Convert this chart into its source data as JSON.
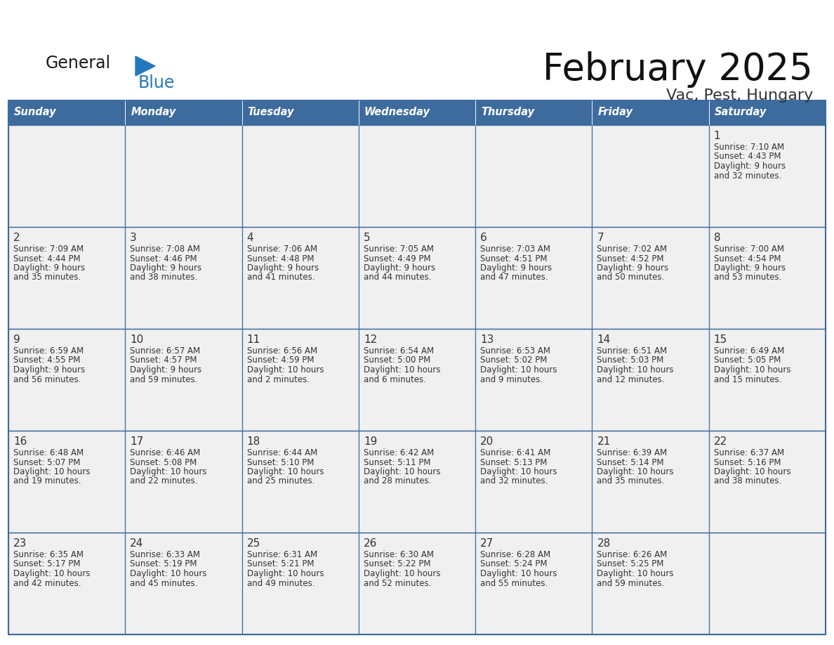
{
  "title": "February 2025",
  "subtitle": "Vac, Pest, Hungary",
  "days_of_week": [
    "Sunday",
    "Monday",
    "Tuesday",
    "Wednesday",
    "Thursday",
    "Friday",
    "Saturday"
  ],
  "header_bg": "#3d6b9e",
  "header_text_color": "#ffffff",
  "cell_bg": "#f0f0f0",
  "border_color": "#3d6b9e",
  "text_color": "#333333",
  "day_num_color": "#333333",
  "logo_general_color": "#1a1a1a",
  "logo_blue_color": "#2478c0",
  "calendar_data": [
    {
      "day": 1,
      "col": 6,
      "row": 0,
      "sunrise": "7:10 AM",
      "sunset": "4:43 PM",
      "daylight_h": "9 hours",
      "daylight_m": "and 32 minutes."
    },
    {
      "day": 2,
      "col": 0,
      "row": 1,
      "sunrise": "7:09 AM",
      "sunset": "4:44 PM",
      "daylight_h": "9 hours",
      "daylight_m": "and 35 minutes."
    },
    {
      "day": 3,
      "col": 1,
      "row": 1,
      "sunrise": "7:08 AM",
      "sunset": "4:46 PM",
      "daylight_h": "9 hours",
      "daylight_m": "and 38 minutes."
    },
    {
      "day": 4,
      "col": 2,
      "row": 1,
      "sunrise": "7:06 AM",
      "sunset": "4:48 PM",
      "daylight_h": "9 hours",
      "daylight_m": "and 41 minutes."
    },
    {
      "day": 5,
      "col": 3,
      "row": 1,
      "sunrise": "7:05 AM",
      "sunset": "4:49 PM",
      "daylight_h": "9 hours",
      "daylight_m": "and 44 minutes."
    },
    {
      "day": 6,
      "col": 4,
      "row": 1,
      "sunrise": "7:03 AM",
      "sunset": "4:51 PM",
      "daylight_h": "9 hours",
      "daylight_m": "and 47 minutes."
    },
    {
      "day": 7,
      "col": 5,
      "row": 1,
      "sunrise": "7:02 AM",
      "sunset": "4:52 PM",
      "daylight_h": "9 hours",
      "daylight_m": "and 50 minutes."
    },
    {
      "day": 8,
      "col": 6,
      "row": 1,
      "sunrise": "7:00 AM",
      "sunset": "4:54 PM",
      "daylight_h": "9 hours",
      "daylight_m": "and 53 minutes."
    },
    {
      "day": 9,
      "col": 0,
      "row": 2,
      "sunrise": "6:59 AM",
      "sunset": "4:55 PM",
      "daylight_h": "9 hours",
      "daylight_m": "and 56 minutes."
    },
    {
      "day": 10,
      "col": 1,
      "row": 2,
      "sunrise": "6:57 AM",
      "sunset": "4:57 PM",
      "daylight_h": "9 hours",
      "daylight_m": "and 59 minutes."
    },
    {
      "day": 11,
      "col": 2,
      "row": 2,
      "sunrise": "6:56 AM",
      "sunset": "4:59 PM",
      "daylight_h": "10 hours",
      "daylight_m": "and 2 minutes."
    },
    {
      "day": 12,
      "col": 3,
      "row": 2,
      "sunrise": "6:54 AM",
      "sunset": "5:00 PM",
      "daylight_h": "10 hours",
      "daylight_m": "and 6 minutes."
    },
    {
      "day": 13,
      "col": 4,
      "row": 2,
      "sunrise": "6:53 AM",
      "sunset": "5:02 PM",
      "daylight_h": "10 hours",
      "daylight_m": "and 9 minutes."
    },
    {
      "day": 14,
      "col": 5,
      "row": 2,
      "sunrise": "6:51 AM",
      "sunset": "5:03 PM",
      "daylight_h": "10 hours",
      "daylight_m": "and 12 minutes."
    },
    {
      "day": 15,
      "col": 6,
      "row": 2,
      "sunrise": "6:49 AM",
      "sunset": "5:05 PM",
      "daylight_h": "10 hours",
      "daylight_m": "and 15 minutes."
    },
    {
      "day": 16,
      "col": 0,
      "row": 3,
      "sunrise": "6:48 AM",
      "sunset": "5:07 PM",
      "daylight_h": "10 hours",
      "daylight_m": "and 19 minutes."
    },
    {
      "day": 17,
      "col": 1,
      "row": 3,
      "sunrise": "6:46 AM",
      "sunset": "5:08 PM",
      "daylight_h": "10 hours",
      "daylight_m": "and 22 minutes."
    },
    {
      "day": 18,
      "col": 2,
      "row": 3,
      "sunrise": "6:44 AM",
      "sunset": "5:10 PM",
      "daylight_h": "10 hours",
      "daylight_m": "and 25 minutes."
    },
    {
      "day": 19,
      "col": 3,
      "row": 3,
      "sunrise": "6:42 AM",
      "sunset": "5:11 PM",
      "daylight_h": "10 hours",
      "daylight_m": "and 28 minutes."
    },
    {
      "day": 20,
      "col": 4,
      "row": 3,
      "sunrise": "6:41 AM",
      "sunset": "5:13 PM",
      "daylight_h": "10 hours",
      "daylight_m": "and 32 minutes."
    },
    {
      "day": 21,
      "col": 5,
      "row": 3,
      "sunrise": "6:39 AM",
      "sunset": "5:14 PM",
      "daylight_h": "10 hours",
      "daylight_m": "and 35 minutes."
    },
    {
      "day": 22,
      "col": 6,
      "row": 3,
      "sunrise": "6:37 AM",
      "sunset": "5:16 PM",
      "daylight_h": "10 hours",
      "daylight_m": "and 38 minutes."
    },
    {
      "day": 23,
      "col": 0,
      "row": 4,
      "sunrise": "6:35 AM",
      "sunset": "5:17 PM",
      "daylight_h": "10 hours",
      "daylight_m": "and 42 minutes."
    },
    {
      "day": 24,
      "col": 1,
      "row": 4,
      "sunrise": "6:33 AM",
      "sunset": "5:19 PM",
      "daylight_h": "10 hours",
      "daylight_m": "and 45 minutes."
    },
    {
      "day": 25,
      "col": 2,
      "row": 4,
      "sunrise": "6:31 AM",
      "sunset": "5:21 PM",
      "daylight_h": "10 hours",
      "daylight_m": "and 49 minutes."
    },
    {
      "day": 26,
      "col": 3,
      "row": 4,
      "sunrise": "6:30 AM",
      "sunset": "5:22 PM",
      "daylight_h": "10 hours",
      "daylight_m": "and 52 minutes."
    },
    {
      "day": 27,
      "col": 4,
      "row": 4,
      "sunrise": "6:28 AM",
      "sunset": "5:24 PM",
      "daylight_h": "10 hours",
      "daylight_m": "and 55 minutes."
    },
    {
      "day": 28,
      "col": 5,
      "row": 4,
      "sunrise": "6:26 AM",
      "sunset": "5:25 PM",
      "daylight_h": "10 hours",
      "daylight_m": "and 59 minutes."
    }
  ]
}
